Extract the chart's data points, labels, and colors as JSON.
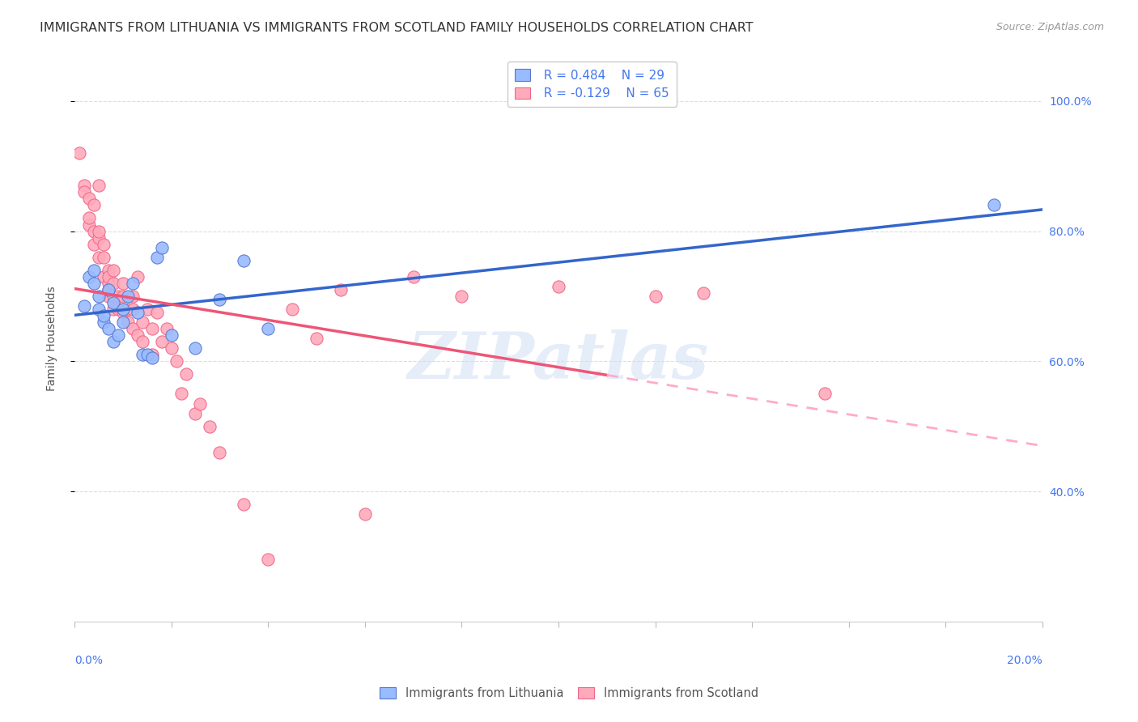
{
  "title": "IMMIGRANTS FROM LITHUANIA VS IMMIGRANTS FROM SCOTLAND FAMILY HOUSEHOLDS CORRELATION CHART",
  "source": "Source: ZipAtlas.com",
  "ylabel": "Family Households",
  "watermark": "ZIPatlas",
  "blue_color": "#99bbff",
  "pink_color": "#ffaabb",
  "blue_edge_color": "#5577cc",
  "pink_edge_color": "#ee6688",
  "blue_line_color": "#3366cc",
  "pink_line_color": "#ee5577",
  "pink_dash_color": "#ffaacc",
  "right_axis_color": "#4477ee",
  "grid_color": "#dddddd",
  "background_color": "#ffffff",
  "xlim": [
    0.0,
    20.0
  ],
  "ylim": [
    20.0,
    107.0
  ],
  "yticks": [
    40.0,
    60.0,
    80.0,
    100.0
  ],
  "yticklabels": [
    "40.0%",
    "60.0%",
    "80.0%",
    "100.0%"
  ],
  "blue_scatter_x": [
    0.2,
    0.3,
    0.4,
    0.4,
    0.5,
    0.5,
    0.6,
    0.6,
    0.7,
    0.7,
    0.8,
    0.8,
    0.9,
    1.0,
    1.0,
    1.1,
    1.2,
    1.3,
    1.4,
    1.5,
    1.6,
    1.7,
    1.8,
    2.0,
    2.5,
    3.0,
    3.5,
    4.0,
    19.0
  ],
  "blue_scatter_y": [
    68.5,
    73.0,
    72.0,
    74.0,
    68.0,
    70.0,
    66.0,
    67.0,
    65.0,
    71.0,
    63.0,
    69.0,
    64.0,
    66.0,
    68.0,
    70.0,
    72.0,
    67.5,
    61.0,
    61.0,
    60.5,
    76.0,
    77.5,
    64.0,
    62.0,
    69.5,
    75.5,
    65.0,
    84.0
  ],
  "pink_scatter_x": [
    0.1,
    0.2,
    0.2,
    0.3,
    0.3,
    0.3,
    0.4,
    0.4,
    0.4,
    0.5,
    0.5,
    0.5,
    0.5,
    0.6,
    0.6,
    0.6,
    0.7,
    0.7,
    0.7,
    0.7,
    0.7,
    0.8,
    0.8,
    0.8,
    0.8,
    0.9,
    0.9,
    1.0,
    1.0,
    1.0,
    1.1,
    1.1,
    1.2,
    1.2,
    1.2,
    1.3,
    1.3,
    1.4,
    1.4,
    1.5,
    1.6,
    1.6,
    1.7,
    1.8,
    1.9,
    2.0,
    2.1,
    2.2,
    2.3,
    2.5,
    2.6,
    2.8,
    3.0,
    3.5,
    4.0,
    4.5,
    5.0,
    5.5,
    6.0,
    7.0,
    8.0,
    10.0,
    12.0,
    13.0,
    15.5
  ],
  "pink_scatter_y": [
    92.0,
    87.0,
    86.0,
    81.0,
    85.0,
    82.0,
    80.0,
    84.0,
    78.0,
    79.0,
    80.0,
    76.0,
    87.0,
    73.0,
    76.0,
    78.0,
    70.0,
    74.0,
    72.0,
    71.0,
    73.0,
    68.0,
    72.0,
    70.0,
    74.0,
    70.0,
    68.0,
    67.5,
    70.0,
    72.0,
    68.0,
    66.0,
    65.0,
    68.0,
    70.0,
    64.0,
    73.0,
    66.0,
    63.0,
    68.0,
    65.0,
    61.0,
    67.5,
    63.0,
    65.0,
    62.0,
    60.0,
    55.0,
    58.0,
    52.0,
    53.5,
    50.0,
    46.0,
    38.0,
    29.5,
    68.0,
    63.5,
    71.0,
    36.5,
    73.0,
    70.0,
    71.5,
    70.0,
    70.5,
    55.0
  ],
  "pink_solid_end_x": 11.0,
  "title_fontsize": 11.5,
  "source_fontsize": 9,
  "axis_label_fontsize": 10,
  "tick_fontsize": 10,
  "scatter_size": 120,
  "legend_r1": "R = 0.484",
  "legend_n1": "N = 29",
  "legend_r2": "R = -0.129",
  "legend_n2": "N = 65"
}
